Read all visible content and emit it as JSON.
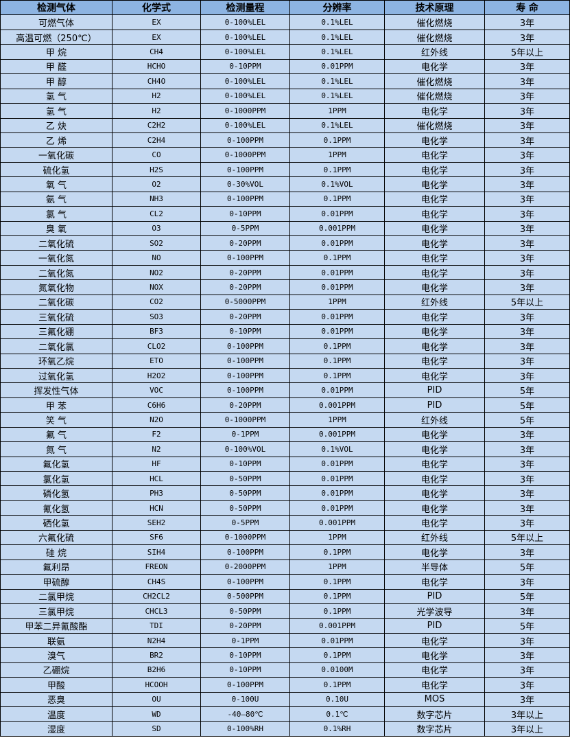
{
  "colors": {
    "header_bg": "#8db4e2",
    "row_bg": "#c5d9f1"
  },
  "table": {
    "headers": [
      "检测气体",
      "化学式",
      "检测量程",
      "分辨率",
      "技术原理",
      "寿 命"
    ],
    "rows": [
      [
        "可燃气体",
        "EX",
        "0-100%LEL",
        "0.1%LEL",
        "催化燃烧",
        "3年"
      ],
      [
        "高温可燃（250℃）",
        "EX",
        "0-100%LEL",
        "0.1%LEL",
        "催化燃烧",
        "3年"
      ],
      [
        "甲 烷",
        "CH4",
        "0-100%LEL",
        "0.1%LEL",
        "红外线",
        "5年以上"
      ],
      [
        "甲 醛",
        "HCHO",
        "0-10PPM",
        "0.01PPM",
        "电化学",
        "3年"
      ],
      [
        "甲 醇",
        "CH4O",
        "0-100%LEL",
        "0.1%LEL",
        "催化燃烧",
        "3年"
      ],
      [
        "氢 气",
        "H2",
        "0-100%LEL",
        "0.1%LEL",
        "催化燃烧",
        "3年"
      ],
      [
        "氢 气",
        "H2",
        "0-1000PPM",
        "1PPM",
        "电化学",
        "3年"
      ],
      [
        "乙 炔",
        "C2H2",
        "0-100%LEL",
        "0.1%LEL",
        "催化燃烧",
        "3年"
      ],
      [
        "乙 烯",
        "C2H4",
        "0-100PPM",
        "0.1PPM",
        "电化学",
        "3年"
      ],
      [
        "一氧化碳",
        "CO",
        "0-1000PPM",
        "1PPM",
        "电化学",
        "3年"
      ],
      [
        "硫化氢",
        "H2S",
        "0-100PPM",
        "0.1PPM",
        "电化学",
        "3年"
      ],
      [
        "氧 气",
        "O2",
        "0-30%VOL",
        "0.1%VOL",
        "电化学",
        "3年"
      ],
      [
        "氨 气",
        "NH3",
        "0-100PPM",
        "0.1PPM",
        "电化学",
        "3年"
      ],
      [
        "氯 气",
        "CL2",
        "0-10PPM",
        "0.01PPM",
        "电化学",
        "3年"
      ],
      [
        "臭 氧",
        "O3",
        "0-5PPM",
        "0.001PPM",
        "电化学",
        "3年"
      ],
      [
        "二氧化硫",
        "SO2",
        "0-20PPM",
        "0.01PPM",
        "电化学",
        "3年"
      ],
      [
        "一氧化氮",
        "NO",
        "0-100PPM",
        "0.1PPM",
        "电化学",
        "3年"
      ],
      [
        "二氧化氮",
        "NO2",
        "0-20PPM",
        "0.01PPM",
        "电化学",
        "3年"
      ],
      [
        "氮氧化物",
        "NOX",
        "0-20PPM",
        "0.01PPM",
        "电化学",
        "3年"
      ],
      [
        "二氧化碳",
        "CO2",
        "0-5000PPM",
        "1PPM",
        "红外线",
        "5年以上"
      ],
      [
        "三氧化硫",
        "SO3",
        "0-20PPM",
        "0.01PPM",
        "电化学",
        "3年"
      ],
      [
        "三氟化硼",
        "BF3",
        "0-10PPM",
        "0.01PPM",
        "电化学",
        "3年"
      ],
      [
        "二氧化氯",
        "CLO2",
        "0-100PPM",
        "0.1PPM",
        "电化学",
        "3年"
      ],
      [
        "环氧乙烷",
        "ETO",
        "0-100PPM",
        "0.1PPM",
        "电化学",
        "3年"
      ],
      [
        "过氧化氢",
        "H2O2",
        "0-100PPM",
        "0.1PPM",
        "电化学",
        "3年"
      ],
      [
        "挥发性气体",
        "VOC",
        "0-100PPM",
        "0.01PPM",
        "PID",
        "5年"
      ],
      [
        "甲 苯",
        "C6H6",
        "0-20PPM",
        "0.001PPM",
        "PID",
        "5年"
      ],
      [
        "笑 气",
        "N2O",
        "0-1000PPM",
        "1PPM",
        "红外线",
        "5年"
      ],
      [
        "氟 气",
        "F2",
        "0-1PPM",
        "0.001PPM",
        "电化学",
        "3年"
      ],
      [
        "氮 气",
        "N2",
        "0-100%VOL",
        "0.1%VOL",
        "电化学",
        "3年"
      ],
      [
        "氟化氢",
        "HF",
        "0-10PPM",
        "0.01PPM",
        "电化学",
        "3年"
      ],
      [
        "氯化氢",
        "HCL",
        "0-50PPM",
        "0.01PPM",
        "电化学",
        "3年"
      ],
      [
        "磷化氢",
        "PH3",
        "0-50PPM",
        "0.01PPM",
        "电化学",
        "3年"
      ],
      [
        "氰化氢",
        "HCN",
        "0-50PPM",
        "0.01PPM",
        "电化学",
        "3年"
      ],
      [
        "硒化氢",
        "SEH2",
        "0-5PPM",
        "0.001PPM",
        "电化学",
        "3年"
      ],
      [
        "六氟化硫",
        "SF6",
        "0-1000PPM",
        "1PPM",
        "红外线",
        "5年以上"
      ],
      [
        "硅 烷",
        "SIH4",
        "0-100PPM",
        "0.1PPM",
        "电化学",
        "3年"
      ],
      [
        "氟利昂",
        "FREON",
        "0-2000PPM",
        "1PPM",
        "半导体",
        "5年"
      ],
      [
        "甲硫醇",
        "CH4S",
        "0-100PPM",
        "0.1PPM",
        "电化学",
        "3年"
      ],
      [
        "二氯甲烷",
        "CH2CL2",
        "0-500PPM",
        "0.1PPM",
        "PID",
        "5年"
      ],
      [
        "三氯甲烷",
        "CHCL3",
        "0-50PPM",
        "0.1PPM",
        "光学波导",
        "3年"
      ],
      [
        "甲苯二异氰酸酯",
        "TDI",
        "0-20PPM",
        "0.001PPM",
        "PID",
        "5年"
      ],
      [
        "联氨",
        "N2H4",
        "0-1PPM",
        "0.01PPM",
        "电化学",
        "3年"
      ],
      [
        "溴气",
        "BR2",
        "0-10PPM",
        "0.1PPM",
        "电化学",
        "3年"
      ],
      [
        "乙硼烷",
        "B2H6",
        "0-10PPM",
        "0.0100M",
        "电化学",
        "3年"
      ],
      [
        "甲酸",
        "HCOOH",
        "0-100PPM",
        "0.1PPM",
        "电化学",
        "3年"
      ],
      [
        "恶臭",
        "OU",
        "0-100U",
        "0.10U",
        "MOS",
        "3年"
      ],
      [
        "温度",
        "WD",
        "-40—80℃",
        "0.1℃",
        "数字芯片",
        "3年以上"
      ],
      [
        "湿度",
        "SD",
        "0-100%RH",
        "0.1%RH",
        "数字芯片",
        "3年以上"
      ]
    ]
  }
}
